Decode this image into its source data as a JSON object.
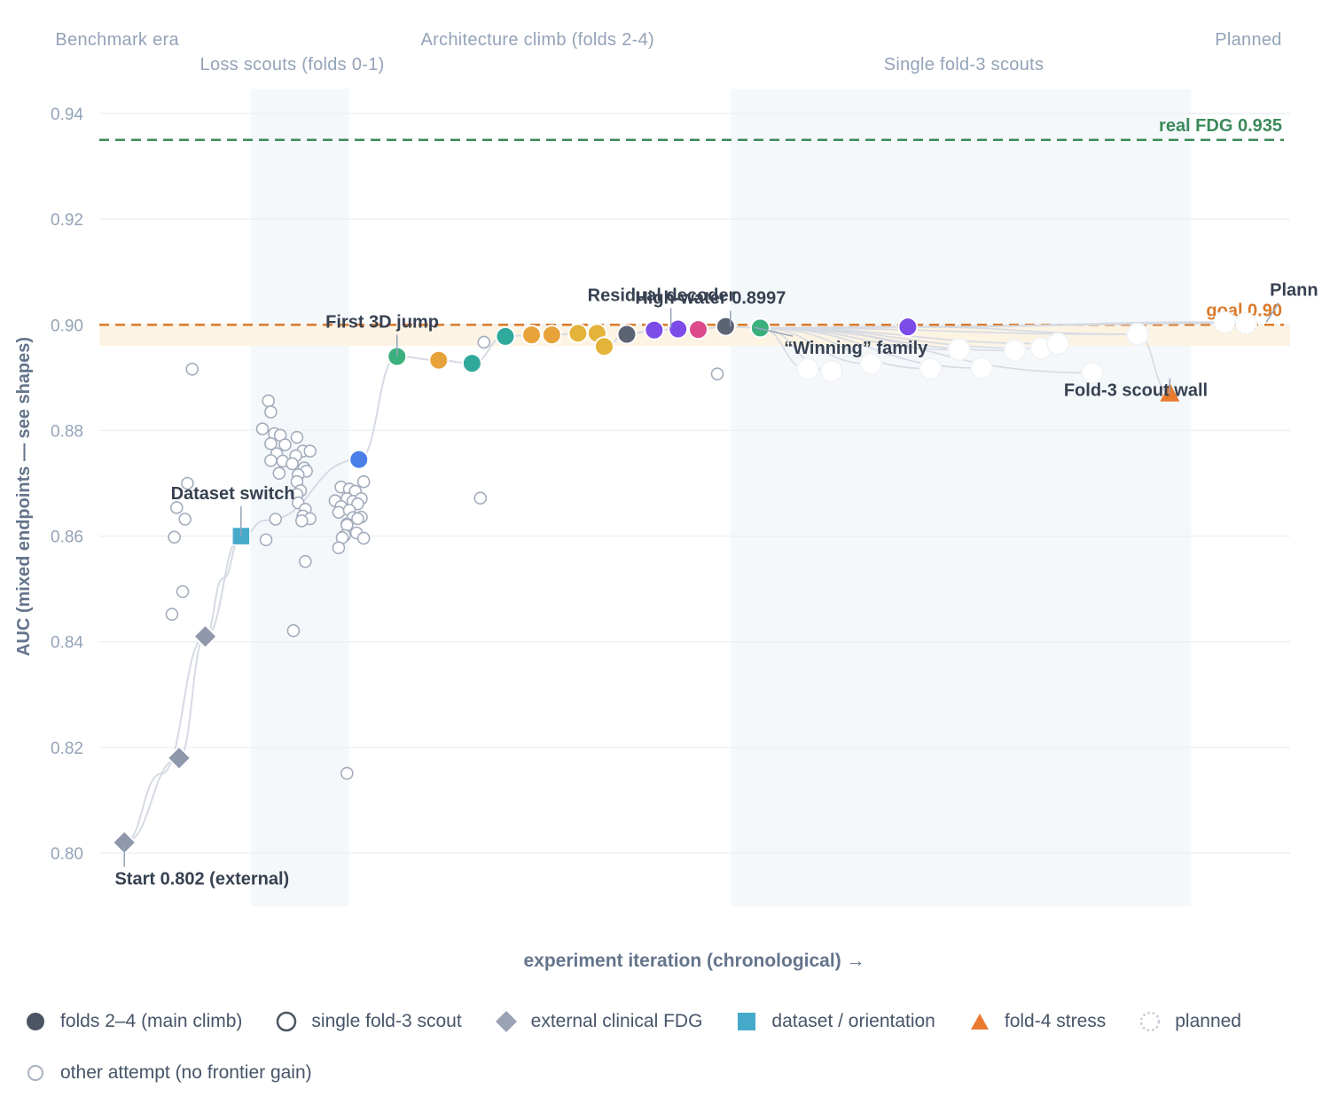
{
  "chart_data": {
    "type": "scatter",
    "ylabel": "AUC (mixed endpoints — see shapes)",
    "xlabel": "experiment iteration (chronological) →",
    "ylim": [
      0.79,
      0.945
    ],
    "xlim": [
      0,
      100
    ],
    "y_ticks": [
      "0.80",
      "0.82",
      "0.84",
      "0.86",
      "0.88",
      "0.90",
      "0.92",
      "0.94"
    ],
    "grid": true,
    "legend_placement": "bottom",
    "colors": {
      "real_line": "#3b8a5a",
      "goal_line": "#d97a2b",
      "goal_band": "#fdf3e3",
      "band_shade": "#f5f8fb",
      "grid": "#eef0f3",
      "curve": "#d5dae3",
      "scout": "#9aa3b5",
      "diamond": "#8e98aa",
      "dataset": "#45aac9",
      "stress": "#ea7a2e"
    },
    "eras": [
      {
        "label": "Benchmark era",
        "row": 1
      },
      {
        "label": "Loss scouts (folds 0-1)",
        "row": 2
      },
      {
        "label": "Architecture climb (folds 2-4)",
        "row": 1
      },
      {
        "label": "Single fold-3 scouts",
        "row": 2
      },
      {
        "label": "Planned",
        "row": 1
      }
    ],
    "shaded_spans": [
      {
        "from": 12.7,
        "to": 21.0
      },
      {
        "from": 53.0,
        "to": 91.7
      }
    ],
    "reference_lines": [
      {
        "label": "real FDG 0.935",
        "value": 0.935,
        "color": "#3b8a5a"
      },
      {
        "label": "goal 0.90",
        "value": 0.9,
        "color": "#d97a2b"
      }
    ],
    "goal_band": [
      0.896,
      0.9
    ],
    "annotations": [
      {
        "text": "Start 0.802 (external)",
        "x": 2.1,
        "y": 0.802,
        "tx": 1.3,
        "ty": 0.794
      },
      {
        "text": "Dataset switch",
        "x": 11.9,
        "y": 0.86,
        "tx": 6.0,
        "ty": 0.867
      },
      {
        "text": "First 3D jump",
        "x": 25.0,
        "y": 0.894,
        "tx": 19.0,
        "ty": 0.8995
      },
      {
        "text": "Residual decoder",
        "x": 48.0,
        "y": 0.8995,
        "tx": 41.0,
        "ty": 0.9045
      },
      {
        "text": "High-water 0.8997",
        "x": 53.0,
        "y": 0.8997,
        "tx": 45.0,
        "ty": 0.904
      },
      {
        "text": "“Winning” family",
        "x": 55.0,
        "y": 0.8995,
        "tx": 57.5,
        "ty": 0.8945
      },
      {
        "text": "Fold-3 scout wall",
        "x": 89.9,
        "y": 0.887,
        "tx": 81.0,
        "ty": 0.8865
      },
      {
        "text": "Plann",
        "x": 98.0,
        "y": 0.9005,
        "tx": 98.3,
        "ty": 0.9055
      }
    ],
    "series": [
      {
        "name": "folds 2–4 (main climb)",
        "marker": "circle-filled",
        "points": [
          {
            "x": 21.8,
            "y": 0.8745,
            "color": "#4a7fe8"
          },
          {
            "x": 25.0,
            "y": 0.894,
            "color": "#3bb07d"
          },
          {
            "x": 28.5,
            "y": 0.8933,
            "color": "#e8a23a"
          },
          {
            "x": 31.3,
            "y": 0.8927,
            "color": "#2fa99b"
          },
          {
            "x": 34.1,
            "y": 0.8978,
            "color": "#2fa99b"
          },
          {
            "x": 36.3,
            "y": 0.8981,
            "color": "#e8a23a"
          },
          {
            "x": 38.0,
            "y": 0.8981,
            "color": "#e8a23a"
          },
          {
            "x": 40.2,
            "y": 0.8984,
            "color": "#e4b33a"
          },
          {
            "x": 41.8,
            "y": 0.8984,
            "color": "#e4b33a"
          },
          {
            "x": 42.4,
            "y": 0.8959,
            "color": "#e4b33a"
          },
          {
            "x": 44.3,
            "y": 0.8982,
            "color": "#5b6475"
          },
          {
            "x": 46.6,
            "y": 0.899,
            "color": "#7d4ce8"
          },
          {
            "x": 48.6,
            "y": 0.8992,
            "color": "#7d4ce8"
          },
          {
            "x": 50.3,
            "y": 0.8991,
            "color": "#dc4a8a"
          },
          {
            "x": 52.6,
            "y": 0.8997,
            "color": "#5b6475"
          },
          {
            "x": 55.5,
            "y": 0.8994,
            "color": "#3bb07d"
          },
          {
            "x": 67.9,
            "y": 0.8996,
            "color": "#7d4ce8"
          }
        ]
      },
      {
        "name": "external clinical FDG",
        "marker": "diamond",
        "points": [
          {
            "x": 2.1,
            "y": 0.802
          },
          {
            "x": 6.7,
            "y": 0.818
          },
          {
            "x": 8.9,
            "y": 0.841
          }
        ]
      },
      {
        "name": "dataset / orientation",
        "marker": "square",
        "points": [
          {
            "x": 11.9,
            "y": 0.86
          }
        ]
      },
      {
        "name": "fold-4 stress",
        "marker": "triangle",
        "points": [
          {
            "x": 89.9,
            "y": 0.887
          }
        ]
      },
      {
        "name": "single fold-3 scout",
        "marker": "circle-open",
        "points": [
          {
            "x": 59.5,
            "y": 0.8916
          },
          {
            "x": 61.5,
            "y": 0.8912
          },
          {
            "x": 64.8,
            "y": 0.8926
          },
          {
            "x": 69.8,
            "y": 0.8917
          },
          {
            "x": 72.2,
            "y": 0.8953
          },
          {
            "x": 74.1,
            "y": 0.8918
          },
          {
            "x": 76.9,
            "y": 0.8951
          },
          {
            "x": 79.1,
            "y": 0.8955
          },
          {
            "x": 80.5,
            "y": 0.8964
          },
          {
            "x": 83.4,
            "y": 0.8909
          },
          {
            "x": 87.2,
            "y": 0.8982
          }
        ]
      },
      {
        "name": "planned",
        "marker": "circle-dotted",
        "points": [
          {
            "x": 94.5,
            "y": 0.9005
          },
          {
            "x": 96.3,
            "y": 0.9003
          }
        ]
      },
      {
        "name": "other attempt (no frontier gain)",
        "marker": "circle-small",
        "points": [
          {
            "x": 7.8,
            "y": 0.8916
          },
          {
            "x": 7.4,
            "y": 0.87
          },
          {
            "x": 6.5,
            "y": 0.8654
          },
          {
            "x": 7.2,
            "y": 0.8632
          },
          {
            "x": 6.3,
            "y": 0.8598
          },
          {
            "x": 7.0,
            "y": 0.8495
          },
          {
            "x": 6.1,
            "y": 0.8452
          },
          {
            "x": 14.2,
            "y": 0.8856
          },
          {
            "x": 14.4,
            "y": 0.8835
          },
          {
            "x": 13.7,
            "y": 0.8803
          },
          {
            "x": 14.7,
            "y": 0.8794
          },
          {
            "x": 15.2,
            "y": 0.8791
          },
          {
            "x": 14.4,
            "y": 0.8775
          },
          {
            "x": 15.6,
            "y": 0.8773
          },
          {
            "x": 14.9,
            "y": 0.8756
          },
          {
            "x": 14.4,
            "y": 0.8743
          },
          {
            "x": 15.4,
            "y": 0.8742
          },
          {
            "x": 16.6,
            "y": 0.8787
          },
          {
            "x": 17.1,
            "y": 0.8761
          },
          {
            "x": 16.5,
            "y": 0.8752
          },
          {
            "x": 17.7,
            "y": 0.8761
          },
          {
            "x": 16.2,
            "y": 0.8737
          },
          {
            "x": 17.2,
            "y": 0.8729
          },
          {
            "x": 17.4,
            "y": 0.8723
          },
          {
            "x": 16.7,
            "y": 0.8716
          },
          {
            "x": 15.1,
            "y": 0.8719
          },
          {
            "x": 16.6,
            "y": 0.8703
          },
          {
            "x": 16.9,
            "y": 0.8686
          },
          {
            "x": 16.6,
            "y": 0.8679
          },
          {
            "x": 16.7,
            "y": 0.8663
          },
          {
            "x": 17.3,
            "y": 0.8651
          },
          {
            "x": 17.1,
            "y": 0.8638
          },
          {
            "x": 17.7,
            "y": 0.8633
          },
          {
            "x": 17.0,
            "y": 0.8629
          },
          {
            "x": 14.8,
            "y": 0.8632
          },
          {
            "x": 14.0,
            "y": 0.8593
          },
          {
            "x": 17.3,
            "y": 0.8552
          },
          {
            "x": 16.3,
            "y": 0.8421
          },
          {
            "x": 20.3,
            "y": 0.8693
          },
          {
            "x": 21.0,
            "y": 0.8689
          },
          {
            "x": 21.5,
            "y": 0.8685
          },
          {
            "x": 22.2,
            "y": 0.8703
          },
          {
            "x": 19.8,
            "y": 0.8667
          },
          {
            "x": 20.8,
            "y": 0.8671
          },
          {
            "x": 21.3,
            "y": 0.8666
          },
          {
            "x": 22.0,
            "y": 0.8671
          },
          {
            "x": 20.3,
            "y": 0.8656
          },
          {
            "x": 21.7,
            "y": 0.8661
          },
          {
            "x": 20.1,
            "y": 0.8645
          },
          {
            "x": 21.0,
            "y": 0.8649
          },
          {
            "x": 21.3,
            "y": 0.8635
          },
          {
            "x": 22.0,
            "y": 0.8636
          },
          {
            "x": 20.8,
            "y": 0.8623
          },
          {
            "x": 21.7,
            "y": 0.8633
          },
          {
            "x": 20.8,
            "y": 0.8621
          },
          {
            "x": 20.6,
            "y": 0.8601
          },
          {
            "x": 21.6,
            "y": 0.8606
          },
          {
            "x": 22.2,
            "y": 0.8596
          },
          {
            "x": 20.4,
            "y": 0.8597
          },
          {
            "x": 20.1,
            "y": 0.8578
          },
          {
            "x": 20.8,
            "y": 0.8151
          },
          {
            "x": 32.3,
            "y": 0.8967
          },
          {
            "x": 32.0,
            "y": 0.8672
          },
          {
            "x": 51.9,
            "y": 0.8907
          }
        ]
      }
    ]
  },
  "legend": [
    {
      "label": "folds 2–4 (main climb)",
      "icon": "filled-circle",
      "color": "#4b5563"
    },
    {
      "label": "single fold-3 scout",
      "icon": "open-circle",
      "color": "#4b5563"
    },
    {
      "label": "external clinical FDG",
      "icon": "diamond",
      "color": "#9aa3b5"
    },
    {
      "label": "dataset / orientation",
      "icon": "square",
      "color": "#45aac9"
    },
    {
      "label": "fold-4 stress",
      "icon": "triangle",
      "color": "#ea7a2e"
    },
    {
      "label": "planned",
      "icon": "dotted-circle",
      "color": "#c6ccd6"
    },
    {
      "label": "other attempt (no frontier gain)",
      "icon": "small-open-circle",
      "color": "#a8b0bf"
    }
  ]
}
